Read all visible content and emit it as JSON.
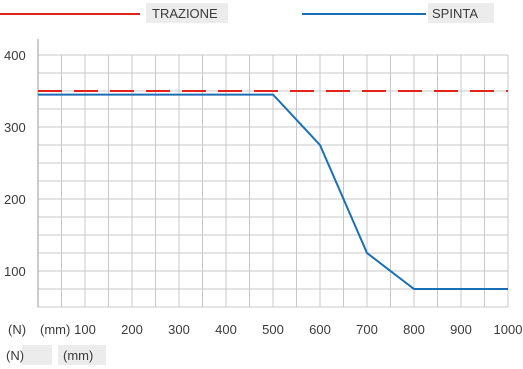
{
  "chart_data": {
    "type": "line",
    "series": [
      {
        "name": "TRAZIONE",
        "color": "#e2231a",
        "dash": "dashed",
        "x": [
          0,
          1000
        ],
        "y": [
          350,
          350
        ]
      },
      {
        "name": "SPINTA",
        "color": "#1a6fb4",
        "dash": "solid",
        "x": [
          0,
          500,
          600,
          700,
          800,
          1000
        ],
        "y": [
          345,
          345,
          275,
          125,
          75,
          75
        ]
      }
    ],
    "xlabel": "(mm)",
    "ylabel": "(N)",
    "xlim": [
      0,
      1000
    ],
    "ylim": [
      50,
      400
    ],
    "xticks": [
      100,
      200,
      300,
      400,
      500,
      600,
      700,
      800,
      900,
      1000
    ],
    "yticks": [
      100,
      200,
      300,
      400
    ],
    "grid": true,
    "legend": "top"
  },
  "footer": {
    "unit_n": "(N)",
    "unit_mm": "(mm)"
  }
}
